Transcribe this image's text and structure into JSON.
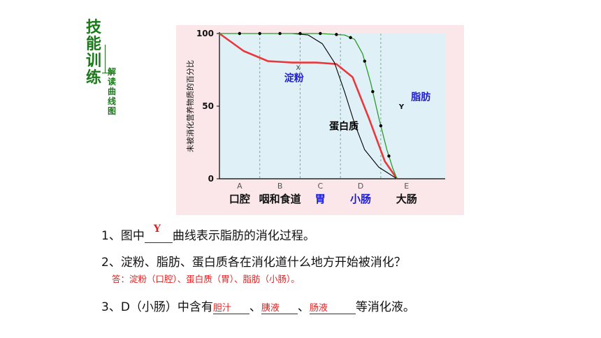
{
  "title": {
    "main": "技能训练",
    "sub": "解读曲线图"
  },
  "chart_data": {
    "type": "line",
    "ylabel": "未被消化营养物质的百分比",
    "yticks": [
      "100",
      "50",
      "0"
    ],
    "ylim": [
      0,
      100
    ],
    "segments": [
      {
        "letter": "A",
        "label": "口腔"
      },
      {
        "letter": "B",
        "label": "咽和食道"
      },
      {
        "letter": "C",
        "label": "胃"
      },
      {
        "letter": "D",
        "label": "小肠"
      },
      {
        "letter": "E",
        "label": "大肠"
      }
    ],
    "xlim": [
      0,
      5
    ],
    "series": [
      {
        "name": "淀粉",
        "color": "#e8383b",
        "points": [
          [
            0,
            100
          ],
          [
            0.6,
            88
          ],
          [
            1.2,
            81
          ],
          [
            1.8,
            80
          ],
          [
            2.4,
            80
          ],
          [
            2.9,
            79
          ],
          [
            3.3,
            70
          ],
          [
            3.7,
            42
          ],
          [
            4.1,
            12
          ],
          [
            4.4,
            0
          ]
        ]
      },
      {
        "name": "蛋白质",
        "color": "#000000",
        "points": [
          [
            0,
            100
          ],
          [
            1,
            100
          ],
          [
            1.8,
            100
          ],
          [
            2.2,
            99
          ],
          [
            2.55,
            93
          ],
          [
            2.85,
            80
          ],
          [
            3.1,
            60
          ],
          [
            3.35,
            38
          ],
          [
            3.6,
            20
          ],
          [
            3.95,
            8
          ],
          [
            4.4,
            0
          ]
        ]
      },
      {
        "name": "脂肪",
        "color": "#2a9a2a",
        "points": [
          [
            0,
            100
          ],
          [
            1,
            100
          ],
          [
            2,
            100
          ],
          [
            2.5,
            100
          ],
          [
            3.1,
            99
          ],
          [
            3.35,
            96
          ],
          [
            3.55,
            86
          ],
          [
            3.75,
            66
          ],
          [
            3.95,
            42
          ],
          [
            4.15,
            20
          ],
          [
            4.3,
            7
          ],
          [
            4.4,
            0
          ]
        ]
      }
    ],
    "curve_mark": "Y",
    "curve_mark_x": "X"
  },
  "questions": {
    "q1": {
      "before": "1、图中",
      "answer": "Y",
      "after": "曲线表示脂肪的消化过程。"
    },
    "q2": {
      "text": "2、淀粉、脂肪、蛋白质各在消化道什么地方开始被消化？"
    },
    "q2_answer": "答：淀粉（口腔）、蛋白质（胃）、脂肪（小肠）。",
    "q3": {
      "before": "3、D（小肠）中含有",
      "a1": "胆汁",
      "sep1": "、",
      "a2": "胰液",
      "sep2": "、",
      "a3": "肠液",
      "after": "等消化液。"
    }
  },
  "colors": {
    "plot_bg": "#dff0f7",
    "panel_bg": "#fbe6ea",
    "title_green": "#1a7a1a",
    "answer_red": "#e02020",
    "label_blue": "#1c1ccc"
  }
}
